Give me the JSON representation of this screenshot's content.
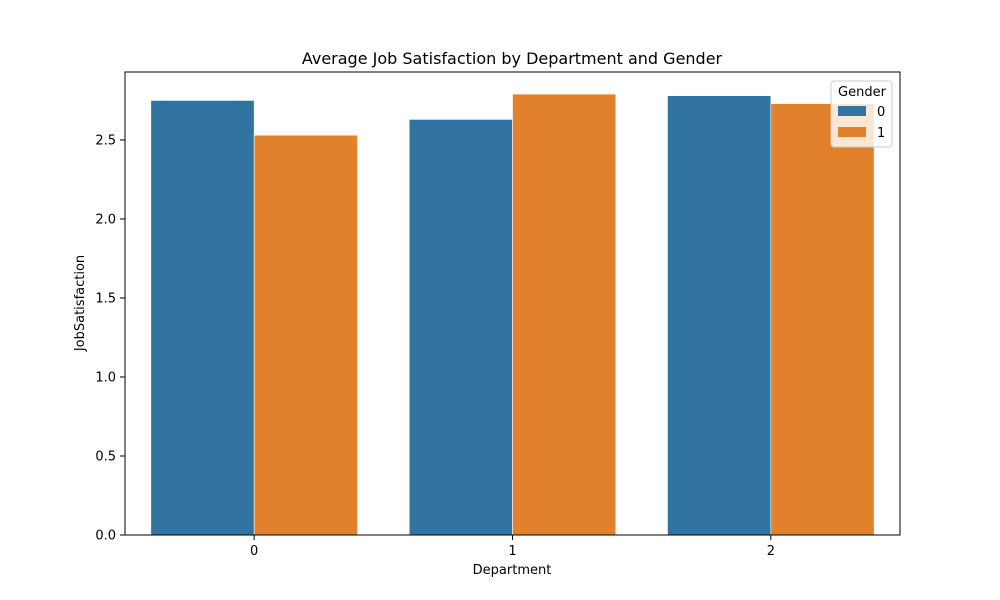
{
  "chart_data": {
    "type": "bar",
    "title": "Average Job Satisfaction by Department and Gender",
    "xlabel": "Department",
    "ylabel": "JobSatisfaction",
    "categories": [
      "0",
      "1",
      "2"
    ],
    "ylim": [
      0,
      2.93
    ],
    "yticks": [
      "0.0",
      "0.5",
      "1.0",
      "1.5",
      "2.0",
      "2.5"
    ],
    "grid": false,
    "legend": {
      "title": "Gender",
      "placement": "top-right"
    },
    "series": [
      {
        "name": "0",
        "color": "#3274a1",
        "values": [
          2.75,
          2.63,
          2.78
        ]
      },
      {
        "name": "1",
        "color": "#e1812c",
        "values": [
          2.53,
          2.79,
          2.73
        ]
      }
    ]
  }
}
